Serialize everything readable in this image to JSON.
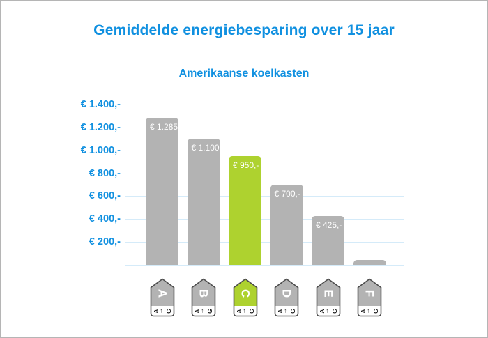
{
  "page": {
    "title": "Gemiddelde energiebesparing over 15 jaar",
    "subtitle": "Amerikaanse koelkasten"
  },
  "chart_data": {
    "type": "bar",
    "title": "Gemiddelde energiebesparing over 15 jaar",
    "subtitle": "Amerikaanse koelkasten",
    "categories": [
      "A",
      "B",
      "C",
      "D",
      "E",
      "F"
    ],
    "values": [
      1285,
      1100,
      950,
      700,
      425,
      45
    ],
    "bar_labels": [
      "€ 1.285,-",
      "€ 1.100,-",
      "€ 950,-",
      "€ 700,-",
      "€ 425,-",
      ""
    ],
    "bar_colors": [
      "#b3b3b3",
      "#b3b3b3",
      "#aed22f",
      "#b3b3b3",
      "#b3b3b3",
      "#b3b3b3"
    ],
    "highlighted_category": "C",
    "ylim": [
      0,
      1400
    ],
    "yticks": [
      {
        "value": 1400,
        "label": "€ 1.400,-"
      },
      {
        "value": 1200,
        "label": "€ 1.200,-"
      },
      {
        "value": 1000,
        "label": "€ 1.000,-"
      },
      {
        "value": 800,
        "label": "€ 800,-"
      },
      {
        "value": 600,
        "label": "€ 600,-"
      },
      {
        "value": 400,
        "label": "€ 400,-"
      },
      {
        "value": 200,
        "label": "€ 200,-"
      },
      {
        "value": 0,
        "label": ""
      }
    ],
    "xlabel": "",
    "ylabel": "",
    "grid": true,
    "legend": false,
    "icon_strip_text": "A←G"
  },
  "colors": {
    "accent_blue": "#1090e0",
    "gridline_blue": "#d5ebf9",
    "bar_gray": "#b3b3b3",
    "bar_green": "#aed22f",
    "icon_border": "#4d4d4d",
    "bar_label_text": "#ffffff",
    "canvas_border": "#b5b5b5"
  }
}
